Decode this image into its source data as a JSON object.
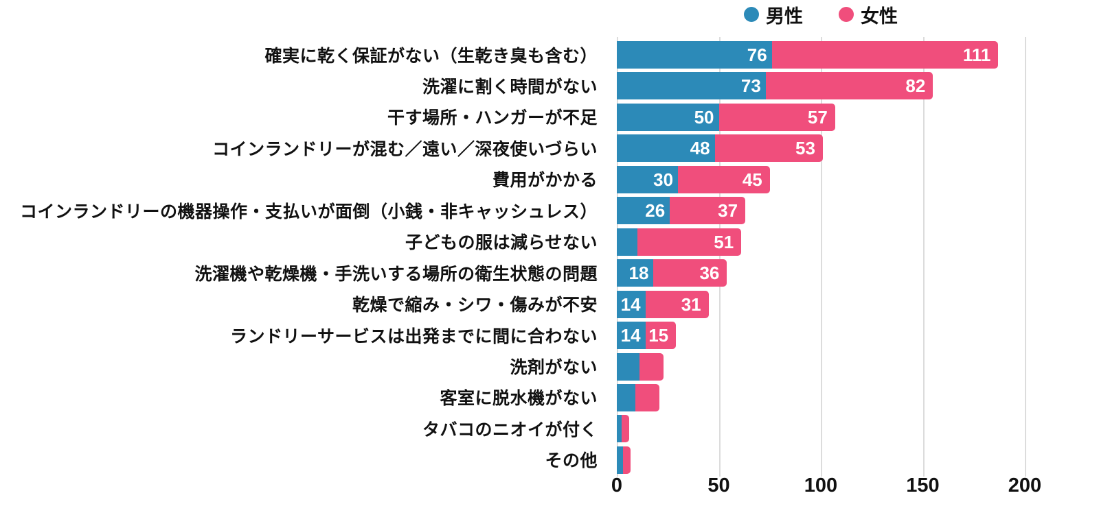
{
  "chart_data": {
    "type": "bar",
    "orientation": "horizontal",
    "stacked": true,
    "title": "",
    "xlabel": "",
    "ylabel": "",
    "xlim": [
      0,
      200
    ],
    "x_tick_values": [
      0,
      50,
      100,
      150,
      200
    ],
    "x_tick_labels": [
      "0",
      "50",
      "100",
      "150",
      "200"
    ],
    "grid": true,
    "legend_position": "top",
    "categories": [
      "確実に乾く保証がない（生乾き臭も含む）",
      "洗濯に割く時間がない",
      "干す場所・ハンガーが不足",
      "コインランドリーが混む／遠い／深夜使いづらい",
      "費用がかかる",
      "コインランドリーの機器操作・支払いが面倒（小銭・非キャッシュレス）",
      "子どもの服は減らせない",
      "洗濯機や乾燥機・手洗いする場所の衛生状態の問題",
      "乾燥で縮み・シワ・傷みが不安",
      "ランドリーサービスは出発までに間に合わない",
      "洗剤がない",
      "客室に脱水機がない",
      "タバコのニオイが付く",
      "その他"
    ],
    "series": [
      {
        "name": "男性",
        "color": "#2C8AB8",
        "values": [
          76,
          73,
          50,
          48,
          30,
          26,
          10,
          18,
          14,
          14,
          11,
          9,
          2,
          3
        ],
        "bar_labels": [
          "76",
          "73",
          "50",
          "48",
          "30",
          "26",
          "",
          "18",
          "14",
          "14",
          "",
          "",
          "",
          ""
        ]
      },
      {
        "name": "女性",
        "color": "#F04E7C",
        "values": [
          111,
          82,
          57,
          53,
          45,
          37,
          51,
          36,
          31,
          15,
          12,
          12,
          3,
          3
        ],
        "bar_labels": [
          "111",
          "82",
          "57",
          "53",
          "45",
          "37",
          "51",
          "36",
          "31",
          "15",
          "",
          "",
          "",
          ""
        ]
      }
    ],
    "colors": {
      "male": "#2C8AB8",
      "female": "#F04E7C",
      "gridline": "#dcdcdc",
      "text": "#111111",
      "bar_value_text": "#ffffff"
    }
  }
}
